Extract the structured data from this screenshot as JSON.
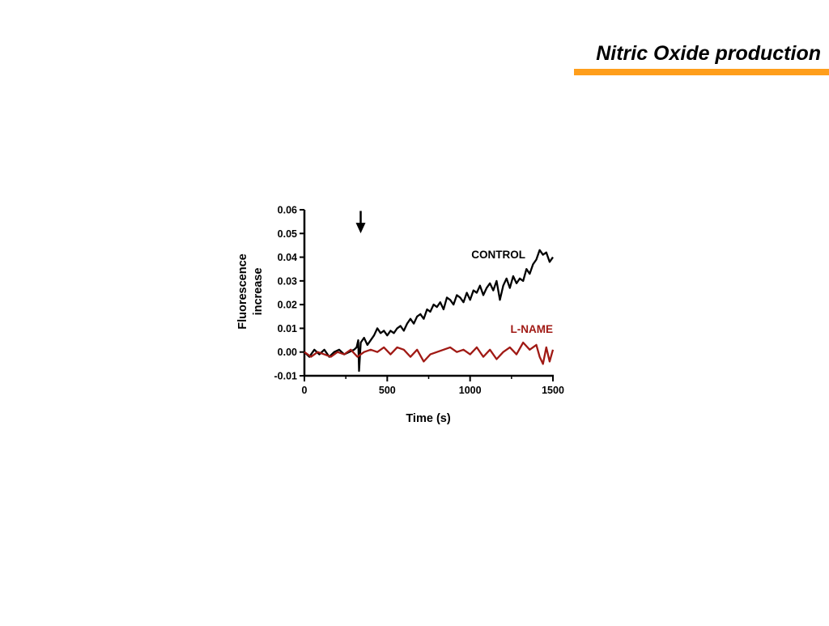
{
  "slide": {
    "title": "Nitric Oxide production",
    "accent_color": "#FF9E1B"
  },
  "chart_data": {
    "type": "line",
    "title": "",
    "xlabel": "Time (s)",
    "ylabel": "Fluorescence increase",
    "xlim": [
      0,
      1500
    ],
    "ylim": [
      -0.01,
      0.06
    ],
    "x_ticks": [
      "0",
      "500",
      "1000",
      "1500"
    ],
    "y_ticks": [
      "-0.01",
      "0.00",
      "0.01",
      "0.02",
      "0.03",
      "0.04",
      "0.05",
      "0.06"
    ],
    "grid": false,
    "legend": "inline labels",
    "annotations": [
      {
        "type": "arrow-down",
        "x": 325,
        "y_from": 0.0595,
        "y_to": 0.0545,
        "label": ""
      }
    ],
    "series": [
      {
        "name": "CONTROL",
        "color": "#000000",
        "x": [
          0,
          30,
          60,
          90,
          120,
          150,
          180,
          210,
          240,
          270,
          300,
          315,
          325,
          330,
          340,
          360,
          380,
          400,
          420,
          440,
          460,
          480,
          500,
          520,
          540,
          560,
          580,
          600,
          620,
          640,
          660,
          680,
          700,
          720,
          740,
          760,
          780,
          800,
          820,
          840,
          860,
          880,
          900,
          920,
          940,
          960,
          980,
          1000,
          1020,
          1040,
          1060,
          1080,
          1100,
          1120,
          1140,
          1160,
          1180,
          1200,
          1220,
          1240,
          1260,
          1280,
          1300,
          1320,
          1340,
          1360,
          1380,
          1400,
          1420,
          1440,
          1460,
          1480,
          1500
        ],
        "y": [
          0.0,
          -0.002,
          0.001,
          -0.001,
          0.001,
          -0.002,
          0.0,
          0.001,
          -0.001,
          0.0,
          0.001,
          0.002,
          0.005,
          -0.008,
          0.004,
          0.006,
          0.003,
          0.005,
          0.007,
          0.01,
          0.008,
          0.009,
          0.007,
          0.009,
          0.008,
          0.01,
          0.011,
          0.009,
          0.012,
          0.014,
          0.012,
          0.015,
          0.016,
          0.014,
          0.018,
          0.017,
          0.02,
          0.019,
          0.021,
          0.018,
          0.023,
          0.022,
          0.02,
          0.024,
          0.023,
          0.021,
          0.025,
          0.022,
          0.026,
          0.025,
          0.028,
          0.024,
          0.027,
          0.029,
          0.026,
          0.03,
          0.022,
          0.028,
          0.031,
          0.027,
          0.032,
          0.029,
          0.031,
          0.03,
          0.035,
          0.033,
          0.037,
          0.039,
          0.043,
          0.041,
          0.042,
          0.038,
          0.04
        ]
      },
      {
        "name": "L-NAME",
        "color": "#A01914",
        "x": [
          0,
          40,
          80,
          120,
          160,
          200,
          240,
          280,
          320,
          360,
          400,
          440,
          480,
          520,
          560,
          600,
          640,
          680,
          720,
          760,
          800,
          840,
          880,
          920,
          960,
          1000,
          1040,
          1080,
          1120,
          1160,
          1200,
          1240,
          1280,
          1320,
          1360,
          1400,
          1420,
          1440,
          1460,
          1480,
          1500
        ],
        "y": [
          0.0,
          -0.002,
          0.0,
          -0.001,
          -0.002,
          0.0,
          -0.001,
          0.001,
          -0.002,
          0.0,
          0.001,
          0.0,
          0.002,
          -0.001,
          0.002,
          0.001,
          -0.002,
          0.001,
          -0.004,
          -0.001,
          0.0,
          0.001,
          0.002,
          0.0,
          0.001,
          -0.001,
          0.002,
          -0.002,
          0.001,
          -0.003,
          0.0,
          0.002,
          -0.001,
          0.004,
          0.001,
          0.003,
          -0.002,
          -0.005,
          0.002,
          -0.004,
          0.001
        ]
      }
    ]
  }
}
